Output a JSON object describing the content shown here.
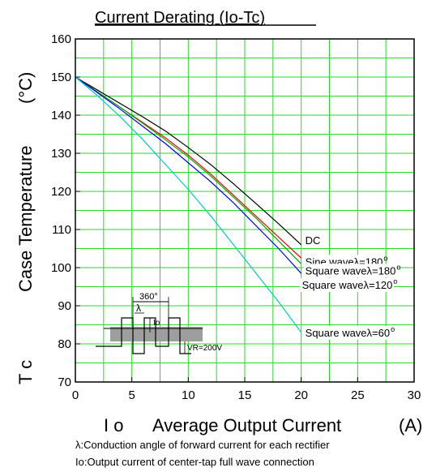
{
  "chart_data": {
    "type": "line",
    "title": "Current Derating  (Io-Tc)",
    "xlabel": "Average Output Current",
    "xlabel_symbol": "I o",
    "xlabel_unit": "(A)",
    "ylabel": "Case Temperature",
    "ylabel_symbol": "T c",
    "ylabel_unit": "(°C)",
    "xlim": [
      0,
      30
    ],
    "ylim": [
      70,
      160
    ],
    "xticks": [
      0,
      5,
      10,
      15,
      20,
      25,
      30
    ],
    "yticks": [
      70,
      80,
      90,
      100,
      110,
      120,
      130,
      140,
      150,
      160
    ],
    "grid": true,
    "grid_color": "#22dd22",
    "series": [
      {
        "name": "DC",
        "color": "#000000",
        "x": [
          0,
          2,
          4,
          6,
          8,
          10,
          12,
          14,
          16,
          18,
          20
        ],
        "y": [
          150,
          146.5,
          143,
          139.5,
          135.8,
          131.5,
          127,
          122,
          116.8,
          111.5,
          106
        ]
      },
      {
        "name": "Sine waveλ=180",
        "color": "#ff0000",
        "x": [
          0,
          2,
          4,
          6,
          8,
          10,
          12,
          14,
          16,
          18,
          20
        ],
        "y": [
          150,
          146,
          142,
          138,
          134,
          129.5,
          124.5,
          119,
          113.5,
          108,
          102.5
        ]
      },
      {
        "name": "Square waveλ=180",
        "color": "#00aa00",
        "x": [
          0,
          2,
          4,
          6,
          8,
          10,
          12,
          14,
          16,
          18,
          20
        ],
        "y": [
          150,
          146,
          142,
          137.8,
          133.5,
          129,
          124,
          118.5,
          113,
          107,
          101
        ]
      },
      {
        "name": "Square waveλ=120",
        "color": "#0000ff",
        "x": [
          0,
          2,
          4,
          6,
          8,
          10,
          12,
          14,
          16,
          18,
          20
        ],
        "y": [
          150,
          145.8,
          141.5,
          137,
          132.5,
          127.5,
          122.5,
          117,
          111,
          105,
          98.5
        ]
      },
      {
        "name": "Square waveλ=60",
        "color": "#00cccc",
        "x": [
          0,
          2,
          4,
          6,
          8,
          10,
          12,
          14,
          16,
          18,
          20
        ],
        "y": [
          150,
          145,
          139.5,
          133.5,
          127,
          120.5,
          113.5,
          106,
          98.5,
          91,
          83
        ]
      }
    ],
    "inset": {
      "angle_label": "360°",
      "lambda_label": "λ",
      "io_label": "Io",
      "vr_label": "VR=200V"
    }
  },
  "notes": [
    "λ:Conduction angle of forward current for each rectifier",
    "Io:Output current of center-tap full wave connection"
  ]
}
